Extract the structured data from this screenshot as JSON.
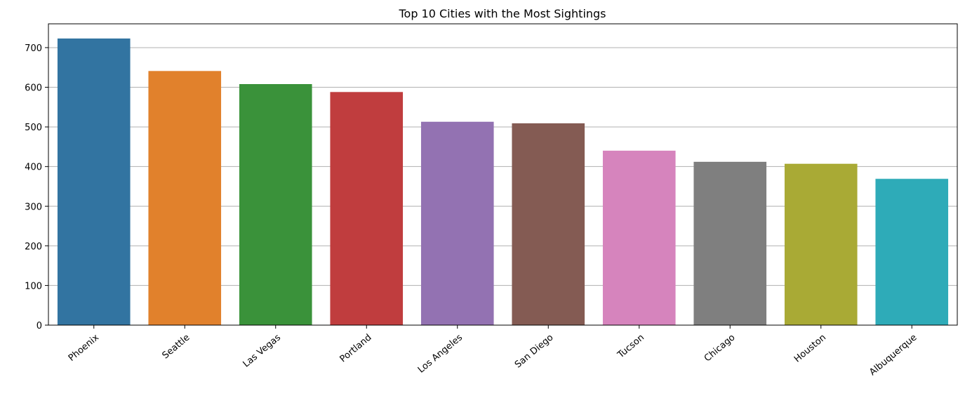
{
  "chart_data": {
    "type": "bar",
    "title": "Top 10 Cities with the Most Sightings",
    "xlabel": "",
    "ylabel": "",
    "categories": [
      "Phoenix",
      "Seattle",
      "Las Vegas",
      "Portland",
      "Los Angeles",
      "San Diego",
      "Tucson",
      "Chicago",
      "Houston",
      "Albuquerque"
    ],
    "values": [
      723,
      641,
      608,
      588,
      513,
      509,
      440,
      412,
      407,
      369
    ],
    "colors": [
      "#3274a1",
      "#e1812c",
      "#3a923a",
      "#c03d3e",
      "#9372b2",
      "#845b53",
      "#d684bd",
      "#7f7f7f",
      "#a9aa35",
      "#2eabb8"
    ],
    "ylim": [
      0,
      760
    ],
    "yticks": [
      0,
      100,
      200,
      300,
      400,
      500,
      600,
      700
    ],
    "grid": "horizontal",
    "legend": "none"
  }
}
